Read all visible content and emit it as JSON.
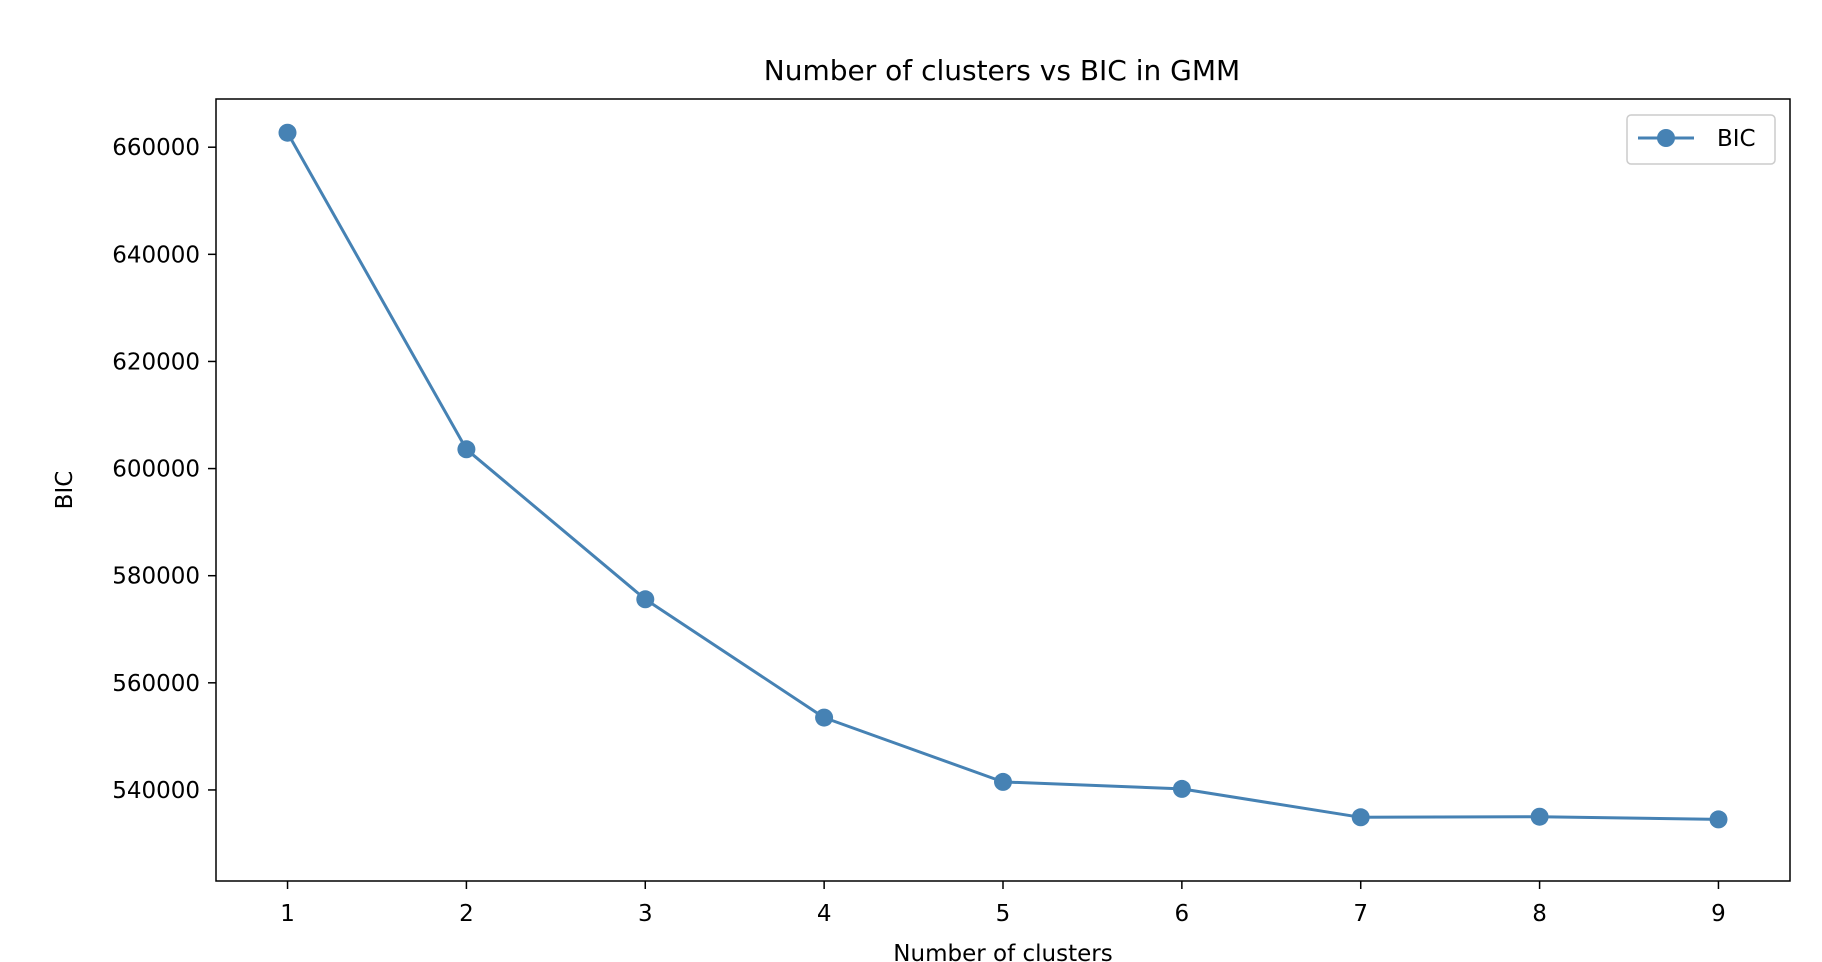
{
  "chart_data": {
    "type": "line",
    "title": "Number of clusters vs BIC in GMM",
    "xlabel": "Number of clusters",
    "ylabel": "BIC",
    "x": [
      1,
      2,
      3,
      4,
      5,
      6,
      7,
      8,
      9
    ],
    "xlim": [
      0.6,
      9.4
    ],
    "ylim": [
      523000,
      669000
    ],
    "xticks": [
      1,
      2,
      3,
      4,
      5,
      6,
      7,
      8,
      9
    ],
    "yticks": [
      540000,
      560000,
      580000,
      600000,
      620000,
      640000,
      660000
    ],
    "grid": false,
    "legend_position": "top-right",
    "series": [
      {
        "name": "BIC",
        "color": "#4682b4",
        "marker": "circle",
        "values": [
          662700,
          603600,
          575600,
          553500,
          541500,
          540200,
          534900,
          535000,
          534500
        ]
      }
    ]
  }
}
